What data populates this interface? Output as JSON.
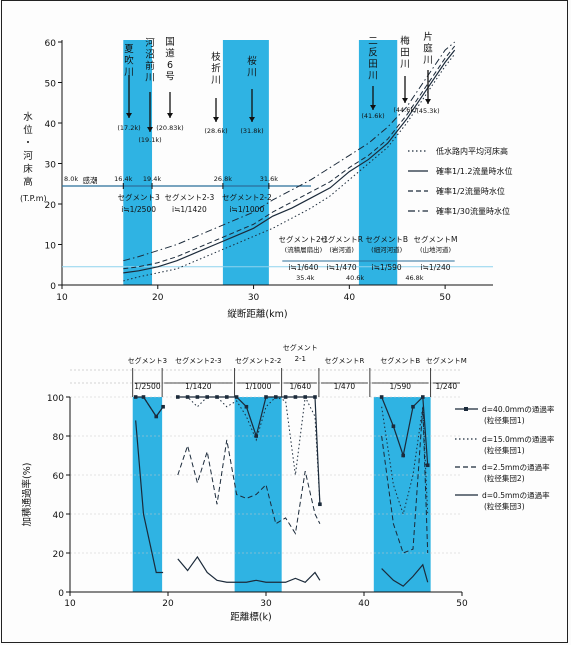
{
  "chart_data": [
    {
      "type": "line",
      "xlabel": "縦断距離(km)",
      "ylabel": "水位・河床高(T.P.m)",
      "xlim": [
        10,
        55
      ],
      "ylim": [
        0,
        60
      ],
      "xticks": [
        "10",
        "20",
        "30",
        "40",
        "50"
      ],
      "yticks": [
        "0",
        "10",
        "20",
        "30",
        "40",
        "50",
        "60"
      ],
      "grid": false,
      "legend_position": "right",
      "shaded_bands": [
        [
          16.4,
          19.4
        ],
        [
          26.8,
          31.6
        ],
        [
          41.0,
          45.0
        ]
      ],
      "series": [
        {
          "name": "低水路内平均河床高",
          "style": "dotted",
          "x": [
            16.4,
            18,
            20,
            22,
            24,
            26,
            28,
            30,
            32,
            34,
            36,
            38,
            40,
            42,
            44,
            46,
            48,
            50,
            51
          ],
          "y": [
            1,
            2,
            3,
            4,
            6,
            8,
            10,
            12,
            14,
            16.5,
            19,
            22,
            26,
            30,
            34,
            40,
            47,
            54,
            57
          ]
        },
        {
          "name": "確率1/1.2流量時水位",
          "style": "solid",
          "x": [
            16.4,
            18,
            20,
            22,
            24,
            26,
            28,
            30,
            32,
            34,
            36,
            38,
            40,
            42,
            44,
            46,
            48,
            50,
            51
          ],
          "y": [
            3,
            3.5,
            4.5,
            6,
            8,
            10,
            12,
            14,
            17,
            19,
            21.5,
            24,
            28,
            31,
            35,
            41,
            48,
            55,
            58
          ]
        },
        {
          "name": "確率1/2流量時水位",
          "style": "dashed",
          "x": [
            16.4,
            18,
            20,
            22,
            24,
            26,
            28,
            30,
            32,
            34,
            36,
            38,
            40,
            42,
            44,
            46,
            48,
            50,
            51
          ],
          "y": [
            4,
            4.5,
            5.5,
            7,
            9,
            11,
            13,
            15,
            18,
            20.5,
            23,
            25.5,
            29,
            32,
            36,
            42,
            49,
            56,
            59
          ]
        },
        {
          "name": "確率1/30流量時水位",
          "style": "dash-dot",
          "x": [
            16.4,
            18,
            20,
            22,
            24,
            26,
            28,
            30,
            32,
            34,
            36,
            38,
            40,
            42,
            44,
            46,
            48,
            50,
            51
          ],
          "y": [
            6,
            7,
            8.5,
            10,
            12,
            14,
            16,
            18,
            21,
            23.5,
            26,
            29,
            32,
            35,
            39,
            44,
            51,
            58,
            60
          ]
        }
      ],
      "annotations": {
        "rivers": [
          {
            "name": "夏吹川",
            "km": "(17.2k)",
            "x": 17.2
          },
          {
            "name": "河沼前川",
            "km": "(19.1k)",
            "x": 19.1
          },
          {
            "name": "国道6号",
            "km": "(20.83k)",
            "x": 20.83
          },
          {
            "name": "枝折川",
            "km": "(28.6k)",
            "x": 28.6
          },
          {
            "name": "桜川",
            "km": "(31.8k)",
            "x": 31.8
          },
          {
            "name": "二反田川",
            "km": "(41.6k)",
            "x": 41.6
          },
          {
            "name": "梅田川",
            "km": "(44.6k)",
            "x": 44.6
          },
          {
            "name": "片庭川",
            "km": "(45.3k)",
            "x": 45.3
          }
        ],
        "km_marks": [
          {
            "label": "8.0k",
            "x": 10
          },
          {
            "label": "16.4k",
            "x": 16.4
          },
          {
            "label": "19.4k",
            "x": 19.4
          },
          {
            "label": "26.8k",
            "x": 26.8
          },
          {
            "label": "31.6k",
            "x": 31.6
          }
        ],
        "segments_upper": [
          {
            "label": "感潮",
            "x": 13
          },
          {
            "label": "セグメント3",
            "slope": "i≒1/2500",
            "x": 18
          },
          {
            "label": "セグメント2-3",
            "slope": "i≒1/1420",
            "x": 23.2
          },
          {
            "label": "セグメント2-2",
            "slope": "i≒1/1000",
            "x": 29.3
          },
          {
            "label": "セグメント2-1",
            "sub": "(流積層扇出)",
            "slope": "i≒1/640",
            "x": 35.2
          },
          {
            "label": "セグメントR",
            "sub": "(岩河道)",
            "slope": "i≒1/470",
            "x": 39
          },
          {
            "label": "セグメントB",
            "sub": "(細河河道)",
            "slope": "i≒1/590",
            "x": 43.8
          },
          {
            "label": "セグメントM",
            "sub": "(山地河道)",
            "slope": "i≒1/240",
            "x": 49
          }
        ],
        "bottom_marks": [
          "35.4k",
          "40.6k",
          "46.8k"
        ]
      }
    },
    {
      "type": "line",
      "xlabel": "距離標(k)",
      "ylabel": "加積通過率(%)",
      "xlim": [
        10,
        50
      ],
      "ylim": [
        0,
        100
      ],
      "xticks": [
        "10",
        "20",
        "30",
        "40",
        "50"
      ],
      "yticks": [
        "0",
        "20",
        "40",
        "60",
        "80",
        "100"
      ],
      "grid": true,
      "legend_position": "right",
      "shaded_bands": [
        [
          16.4,
          19.4
        ],
        [
          26.8,
          31.6
        ],
        [
          41.0,
          46.8
        ]
      ],
      "segments": [
        {
          "label": "セグメント3",
          "slope": "1/2500"
        },
        {
          "label": "セグメント2-3",
          "slope": "1/1420"
        },
        {
          "label": "セグメント2-2",
          "slope": "1/1000"
        },
        {
          "label": "セグメント 2-1",
          "slope": "1/640"
        },
        {
          "label": "セグメントR",
          "slope": "1/470"
        },
        {
          "label": "セグメントB",
          "slope": "1/590"
        },
        {
          "label": "セグメントM",
          "slope": "1/240"
        }
      ],
      "series": [
        {
          "name": "d=40.0mmの通過率",
          "note": "(粒径集団1)",
          "style": "solid-square",
          "x": [
            16.7,
            17.5,
            18.8,
            19.5,
            21,
            22,
            23,
            24,
            25,
            26,
            27,
            28,
            29,
            30,
            31,
            32,
            33,
            34,
            35,
            35.5,
            41.8,
            43,
            44,
            45,
            46,
            46.5
          ],
          "y": [
            100,
            100,
            90,
            95,
            100,
            100,
            100,
            100,
            100,
            100,
            100,
            95,
            80,
            100,
            100,
            100,
            100,
            100,
            100,
            45,
            100,
            85,
            70,
            95,
            100,
            65
          ]
        },
        {
          "name": "d=15.0mmの通過率",
          "note": "(粒径集団1)",
          "style": "dotted",
          "x": [
            16.7,
            17.5,
            18.8,
            19.5,
            21,
            22,
            23,
            24,
            25,
            26,
            27,
            28,
            29,
            30,
            31,
            32,
            33,
            34,
            35,
            35.5,
            41.8,
            43,
            44,
            45,
            46,
            46.5
          ],
          "y": [
            100,
            100,
            90,
            95,
            100,
            100,
            95,
            100,
            100,
            95,
            98,
            90,
            78,
            95,
            100,
            98,
            60,
            100,
            90,
            45,
            95,
            55,
            40,
            60,
            95,
            40
          ]
        },
        {
          "name": "d=2.5mmの通過率",
          "note": "(粒径集団2)",
          "style": "dashed",
          "x": [
            16.7,
            17.5,
            18.8,
            19.5,
            21,
            22,
            23,
            24,
            25,
            26,
            27,
            28,
            29,
            30,
            31,
            32,
            33,
            34,
            35,
            35.5,
            41.8,
            43,
            44,
            45,
            46,
            46.5
          ],
          "y": [
            100,
            100,
            90,
            95,
            60,
            75,
            56,
            72,
            45,
            78,
            50,
            48,
            50,
            55,
            35,
            38,
            30,
            62,
            40,
            35,
            80,
            35,
            20,
            22,
            95,
            20
          ]
        },
        {
          "name": "d=0.5mmの通過率",
          "note": "(粒径集団3)",
          "style": "solid",
          "x": [
            16.7,
            17.5,
            18.8,
            19.5,
            21,
            22,
            23,
            24,
            25,
            26,
            27,
            28,
            29,
            30,
            31,
            32,
            33,
            34,
            35,
            35.5,
            41.8,
            43,
            44,
            45,
            46,
            46.5
          ],
          "y": [
            88,
            40,
            10,
            10,
            17,
            11,
            18,
            10,
            6,
            5,
            5,
            5,
            6,
            5,
            5,
            5,
            7,
            5,
            10,
            6,
            12,
            6,
            3,
            8,
            14,
            5
          ]
        }
      ]
    }
  ]
}
